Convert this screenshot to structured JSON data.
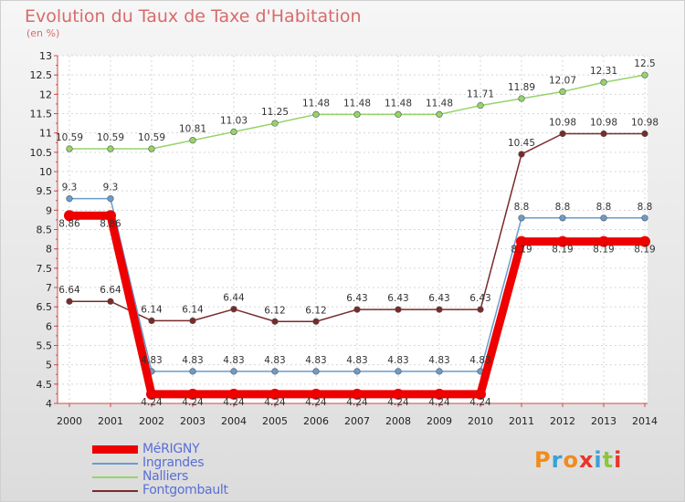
{
  "chart_data": {
    "type": "line",
    "title": "Evolution du Taux de Taxe d'Habitation",
    "subtitle": "(en %)",
    "xlabel": "",
    "ylabel": "",
    "x": [
      "2000",
      "2001",
      "2002",
      "2003",
      "2004",
      "2005",
      "2006",
      "2007",
      "2008",
      "2009",
      "2010",
      "2011",
      "2012",
      "2013",
      "2014"
    ],
    "ylim": [
      4,
      13
    ],
    "yticks": [
      "4",
      "4.5",
      "5",
      "5.5",
      "6",
      "6.5",
      "7",
      "7.5",
      "8",
      "8.5",
      "9",
      "9.5",
      "10",
      "10.5",
      "11",
      "11.5",
      "12",
      "12.5",
      "13"
    ],
    "grid": true,
    "legend_position": "bottom-left",
    "series": [
      {
        "name": "MéRIGNY",
        "color": "#ee0000",
        "values": [
          8.86,
          8.86,
          4.24,
          4.24,
          4.24,
          4.24,
          4.24,
          4.24,
          4.24,
          4.24,
          4.24,
          8.19,
          8.19,
          8.19,
          8.19
        ],
        "labels": [
          "8.86",
          "8.86",
          "4.24",
          "4.24",
          "4.24",
          "4.24",
          "4.24",
          "4.24",
          "4.24",
          "4.24",
          "4.24",
          "8.19",
          "8.19",
          "8.19",
          "8.19"
        ]
      },
      {
        "name": "Ingrandes",
        "color": "#6a9ccc",
        "values": [
          9.3,
          9.3,
          4.83,
          4.83,
          4.83,
          4.83,
          4.83,
          4.83,
          4.83,
          4.83,
          4.83,
          8.8,
          8.8,
          8.8,
          8.8
        ],
        "labels": [
          "9.3",
          "9.3",
          "4.83",
          "4.83",
          "4.83",
          "4.83",
          "4.83",
          "4.83",
          "4.83",
          "4.83",
          "4.83",
          "8.8",
          "8.8",
          "8.8",
          "8.8"
        ]
      },
      {
        "name": "Nalliers",
        "color": "#96d46a",
        "values": [
          10.59,
          10.59,
          10.59,
          10.81,
          11.03,
          11.25,
          11.48,
          11.48,
          11.48,
          11.48,
          11.71,
          11.89,
          12.07,
          12.31,
          12.5
        ],
        "labels": [
          "10.59",
          "10.59",
          "10.59",
          "10.81",
          "11.03",
          "11.25",
          "11.48",
          "11.48",
          "11.48",
          "11.48",
          "11.71",
          "11.89",
          "12.07",
          "12.31",
          "12.5"
        ]
      },
      {
        "name": "Fontgombault",
        "color": "#7a2a2a",
        "values": [
          6.64,
          6.64,
          6.14,
          6.14,
          6.44,
          6.12,
          6.12,
          6.43,
          6.43,
          6.43,
          6.43,
          10.45,
          10.98,
          10.98,
          10.98
        ],
        "labels": [
          "6.64",
          "6.64",
          "6.14",
          "6.14",
          "6.44",
          "6.12",
          "6.12",
          "6.43",
          "6.43",
          "6.43",
          "6.43",
          "10.45",
          "10.98",
          "10.98",
          "10.98"
        ]
      }
    ]
  },
  "brand": {
    "text": "Proxiti",
    "colors": [
      "#f08c1e",
      "#3aa0d8",
      "#f08c1e",
      "#e8342a",
      "#3aa0d8",
      "#8cc63e",
      "#e8342a"
    ]
  }
}
